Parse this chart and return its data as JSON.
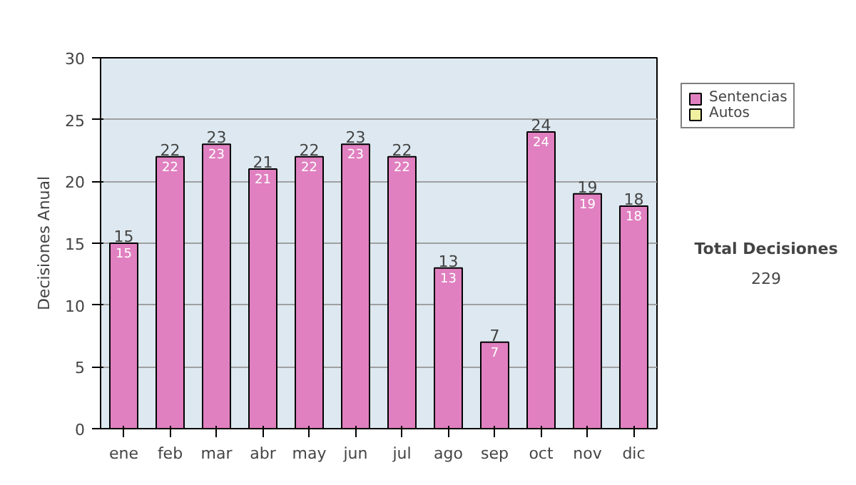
{
  "chart_data": {
    "type": "bar",
    "ylabel": "Decisiones Anual",
    "categories": [
      "ene",
      "feb",
      "mar",
      "abr",
      "may",
      "jun",
      "jul",
      "ago",
      "sep",
      "oct",
      "nov",
      "dic"
    ],
    "series": [
      {
        "name": "Sentencias",
        "color": "#e080c0",
        "values": [
          15,
          22,
          23,
          21,
          22,
          23,
          22,
          13,
          7,
          24,
          19,
          18
        ]
      },
      {
        "name": "Autos",
        "color": "#f0f0a0",
        "values": [
          null,
          null,
          null,
          null,
          null,
          null,
          null,
          null,
          null,
          null,
          null,
          null
        ]
      }
    ],
    "stacked": true,
    "data_labels": true,
    "totals": [
      "15",
      "22",
      "23",
      "21",
      "22",
      "23",
      "22",
      "13",
      "7",
      "24",
      "19",
      "18"
    ],
    "ylim": [
      0,
      30
    ],
    "yticks": [
      0,
      5,
      10,
      15,
      20,
      25,
      30
    ],
    "grid": "y",
    "legend": "right",
    "annotations": [
      "Total Decisiones",
      "229"
    ]
  }
}
